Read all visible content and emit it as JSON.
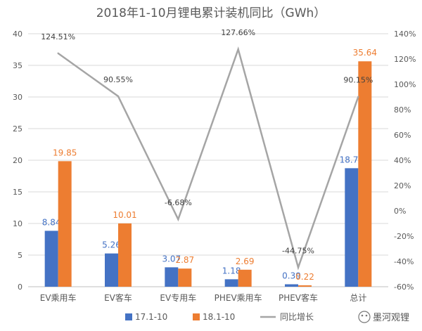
{
  "chart_data": {
    "type": "bar",
    "title": "2018年1-10月锂电累计装机同比（GWh）",
    "categories": [
      "EV乘用车",
      "EV客车",
      "EV专用车",
      "PHEV乘用车",
      "PHEV客车",
      "总计"
    ],
    "series": [
      {
        "name": "17.1-10",
        "kind": "bar",
        "axis": "left",
        "color": "#4472C4",
        "values": [
          8.84,
          5.26,
          3.07,
          1.18,
          0.39,
          18.74
        ],
        "labels": [
          "8.84",
          "5.26",
          "3.07",
          "1.18",
          "0.39",
          "18.74"
        ]
      },
      {
        "name": "18.1-10",
        "kind": "bar",
        "axis": "left",
        "color": "#ED7D31",
        "values": [
          19.85,
          10.01,
          2.87,
          2.69,
          0.22,
          35.64
        ],
        "labels": [
          "19.85",
          "10.01",
          "2.87",
          "2.69",
          "0.22",
          "35.64"
        ]
      },
      {
        "name": "同比增长",
        "kind": "line",
        "axis": "right",
        "color": "#A5A5A5",
        "values": [
          124.51,
          90.55,
          -6.68,
          127.66,
          -44.75,
          90.15
        ],
        "labels": [
          "124.51%",
          "90.55%",
          "-6.68%",
          "127.66%",
          "-44.75%",
          "90.15%"
        ]
      }
    ],
    "y_left": {
      "min": 0,
      "max": 40,
      "step": 5,
      "tick_labels": [
        "0",
        "5",
        "10",
        "15",
        "20",
        "25",
        "30",
        "35",
        "40"
      ]
    },
    "y_right": {
      "min": -60,
      "max": 140,
      "step": 20,
      "tick_labels": [
        "-60%",
        "-40%",
        "-20%",
        "0%",
        "20%",
        "40%",
        "60%",
        "80%",
        "100%",
        "120%",
        "140%"
      ]
    },
    "grid": true,
    "legend": "bottom"
  },
  "watermark": {
    "text": "墨河观锂",
    "icon": "wechat-icon"
  }
}
